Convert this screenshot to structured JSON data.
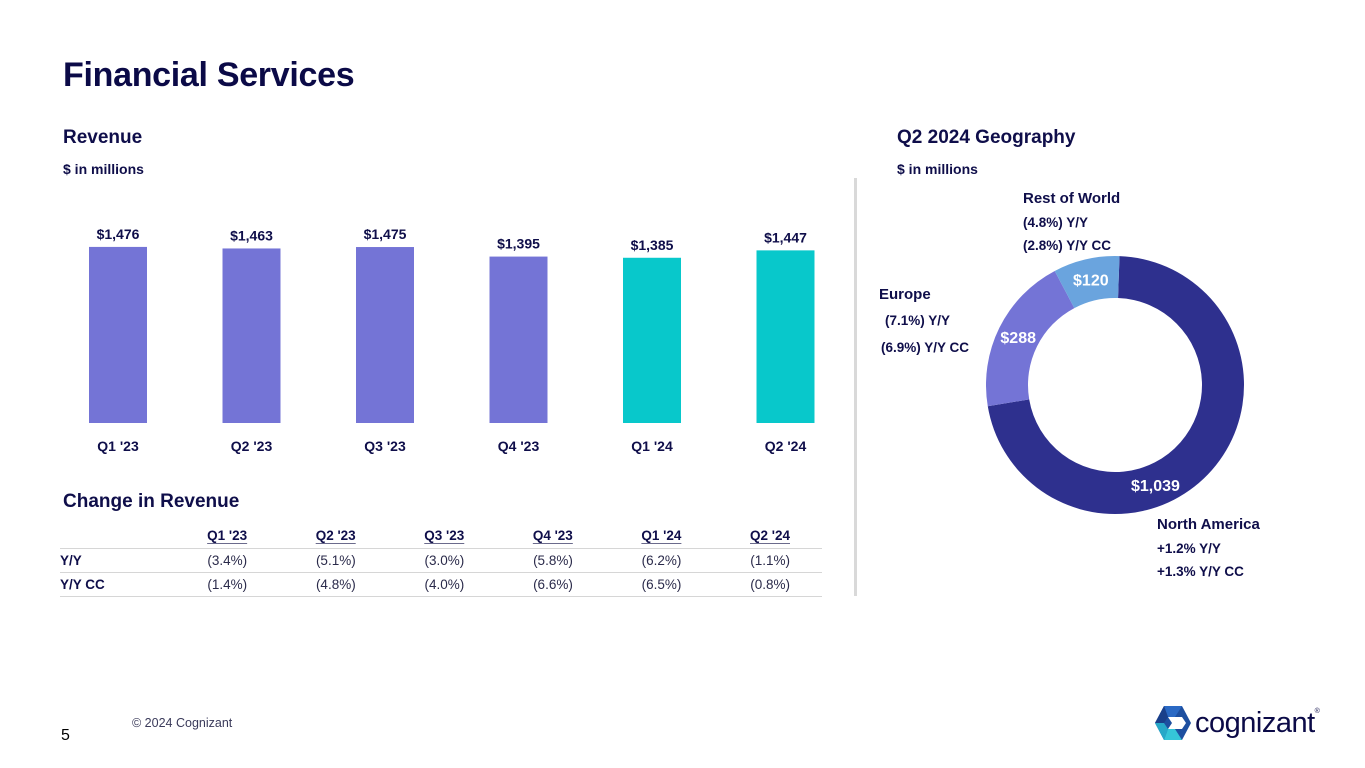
{
  "page": {
    "title": "Financial Services",
    "page_number": "5",
    "copyright": "© 2024 Cognizant",
    "logo_text": "cognizant",
    "logo_mark": "®"
  },
  "revenue": {
    "title": "Revenue",
    "subtitle": "$ in millions"
  },
  "geography": {
    "title": "Q2 2024 Geography",
    "subtitle": "$ in millions",
    "regions": [
      {
        "name": "North America",
        "value_label": "$1,039",
        "yy": "+1.2%  Y/Y",
        "yycc": "+1.3%  Y/Y CC"
      },
      {
        "name": "Europe",
        "value_label": "$288",
        "yy": "(7.1%) Y/Y",
        "yycc": "(6.9%) Y/Y CC"
      },
      {
        "name": "Rest of World",
        "value_label": "$120",
        "yy": "(4.8%) Y/Y",
        "yycc": "(2.8%) Y/Y CC"
      }
    ]
  },
  "change": {
    "title": "Change in Revenue",
    "columns": [
      "Q1 '23",
      "Q2 '23",
      "Q3 '23",
      "Q4 '23",
      "Q1 '24",
      "Q2 '24"
    ],
    "rows": [
      {
        "label": "Y/Y",
        "values": [
          "(3.4%)",
          "(5.1%)",
          "(3.0%)",
          "(5.8%)",
          "(6.2%)",
          "(1.1%)"
        ]
      },
      {
        "label": "Y/Y CC",
        "values": [
          "(1.4%)",
          "(4.8%)",
          "(4.0%)",
          "(6.6%)",
          "(6.5%)",
          "(0.8%)"
        ]
      }
    ]
  },
  "colors": {
    "prior_year": "#7474d6",
    "current_year": "#08c8cb",
    "north_america": "#2e308e",
    "europe": "#7474d6",
    "rest_of_world": "#6aa4de",
    "text_dark": "#0f0e4a"
  },
  "chart_data": [
    {
      "type": "bar",
      "title": "Revenue",
      "subtitle": "$ in millions",
      "xlabel": "",
      "ylabel": "",
      "categories": [
        "Q1 '23",
        "Q2 '23",
        "Q3 '23",
        "Q4 '23",
        "Q1 '24",
        "Q2 '24"
      ],
      "values": [
        1476,
        1463,
        1475,
        1395,
        1385,
        1447
      ],
      "data_labels": [
        "$1,476",
        "$1,463",
        "$1,475",
        "$1,395",
        "$1,385",
        "$1,447"
      ],
      "bar_colors": [
        "#7474d6",
        "#7474d6",
        "#7474d6",
        "#7474d6",
        "#08c8cb",
        "#08c8cb"
      ],
      "grid": false,
      "y_axis_visible": false
    },
    {
      "type": "pie",
      "style": "donut",
      "title": "Q2 2024 Geography",
      "subtitle": "$ in millions",
      "labels": [
        "North America",
        "Europe",
        "Rest of World"
      ],
      "values": [
        1039,
        288,
        120
      ],
      "data_labels": [
        "$1,039",
        "$288",
        "$120"
      ],
      "colors": [
        "#2e308e",
        "#7474d6",
        "#6aa4de"
      ],
      "annotations": [
        {
          "region": "North America",
          "yy": "+1.2%",
          "yycc": "+1.3%"
        },
        {
          "region": "Europe",
          "yy": "(7.1%)",
          "yycc": "(6.9%)"
        },
        {
          "region": "Rest of World",
          "yy": "(4.8%)",
          "yycc": "(2.8%)"
        }
      ]
    }
  ]
}
